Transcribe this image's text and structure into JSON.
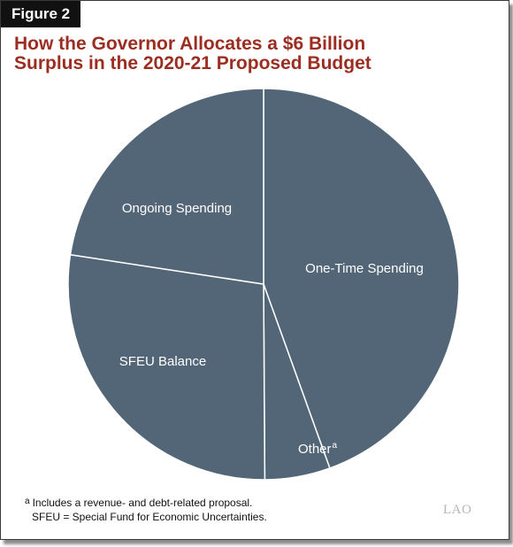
{
  "figure_label": "Figure 2",
  "title_lines": [
    "How the Governor Allocates a $6 Billion",
    "Surplus in the 2020-21 Proposed Budget"
  ],
  "colors": {
    "slice_fill": "#536677",
    "slice_border": "#ffffff",
    "title": "#9b2d21",
    "label_text": "#ffffff"
  },
  "chart_data": {
    "type": "pie",
    "title": "How the Governor Allocates a $6 Billion Surplus in the 2020-21 Proposed Budget",
    "slices": [
      {
        "label": "One-Time Spending",
        "superscript": "",
        "value": 44.5
      },
      {
        "label": "Other",
        "superscript": "a",
        "value": 5.4
      },
      {
        "label": "SFEU Balance",
        "superscript": "",
        "value": 27.5
      },
      {
        "label": "Ongoing Spending",
        "superscript": "",
        "value": 22.6
      }
    ],
    "start_position": "top",
    "direction": "clockwise"
  },
  "footnotes": {
    "a_marker": "a",
    "a_text": "Includes a revenue- and debt-related proposal.",
    "sfeu_text": "SFEU = Special Fund for Economic Uncertainties."
  },
  "logo_text": "LAO"
}
